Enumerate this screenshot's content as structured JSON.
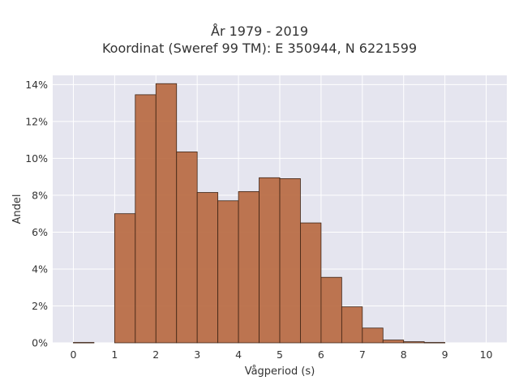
{
  "title_lines": [
    "År 1979 - 2019",
    "Koordinat (Sweref 99 TM): E 350944, N 6221599"
  ],
  "chart_data": {
    "type": "bar",
    "xlabel": "Vågperiod (s)",
    "ylabel": "Andel",
    "xlim": [
      -0.5,
      10.5
    ],
    "ylim": [
      0,
      14.5
    ],
    "x_ticks": [
      0,
      1,
      2,
      3,
      4,
      5,
      6,
      7,
      8,
      9,
      10
    ],
    "y_ticks": [
      0,
      2,
      4,
      6,
      8,
      10,
      12,
      14
    ],
    "y_tick_suffix": "%",
    "bin_width": 0.5,
    "bins": [
      {
        "start": 0.0,
        "value": 0.02
      },
      {
        "start": 0.5,
        "value": 0
      },
      {
        "start": 1.0,
        "value": 7.0
      },
      {
        "start": 1.5,
        "value": 13.45
      },
      {
        "start": 2.0,
        "value": 14.05
      },
      {
        "start": 2.5,
        "value": 10.35
      },
      {
        "start": 3.0,
        "value": 8.15
      },
      {
        "start": 3.5,
        "value": 7.7
      },
      {
        "start": 4.0,
        "value": 8.2
      },
      {
        "start": 4.5,
        "value": 8.95
      },
      {
        "start": 5.0,
        "value": 8.9
      },
      {
        "start": 5.5,
        "value": 6.5
      },
      {
        "start": 6.0,
        "value": 3.55
      },
      {
        "start": 6.5,
        "value": 1.95
      },
      {
        "start": 7.0,
        "value": 0.8
      },
      {
        "start": 7.5,
        "value": 0.15
      },
      {
        "start": 8.0,
        "value": 0.06
      },
      {
        "start": 8.5,
        "value": 0.02
      }
    ],
    "bar_color": "#b86a42",
    "bar_edge_color": "#3d2314",
    "plot_bg": "#e5e5ef",
    "grid": true
  }
}
